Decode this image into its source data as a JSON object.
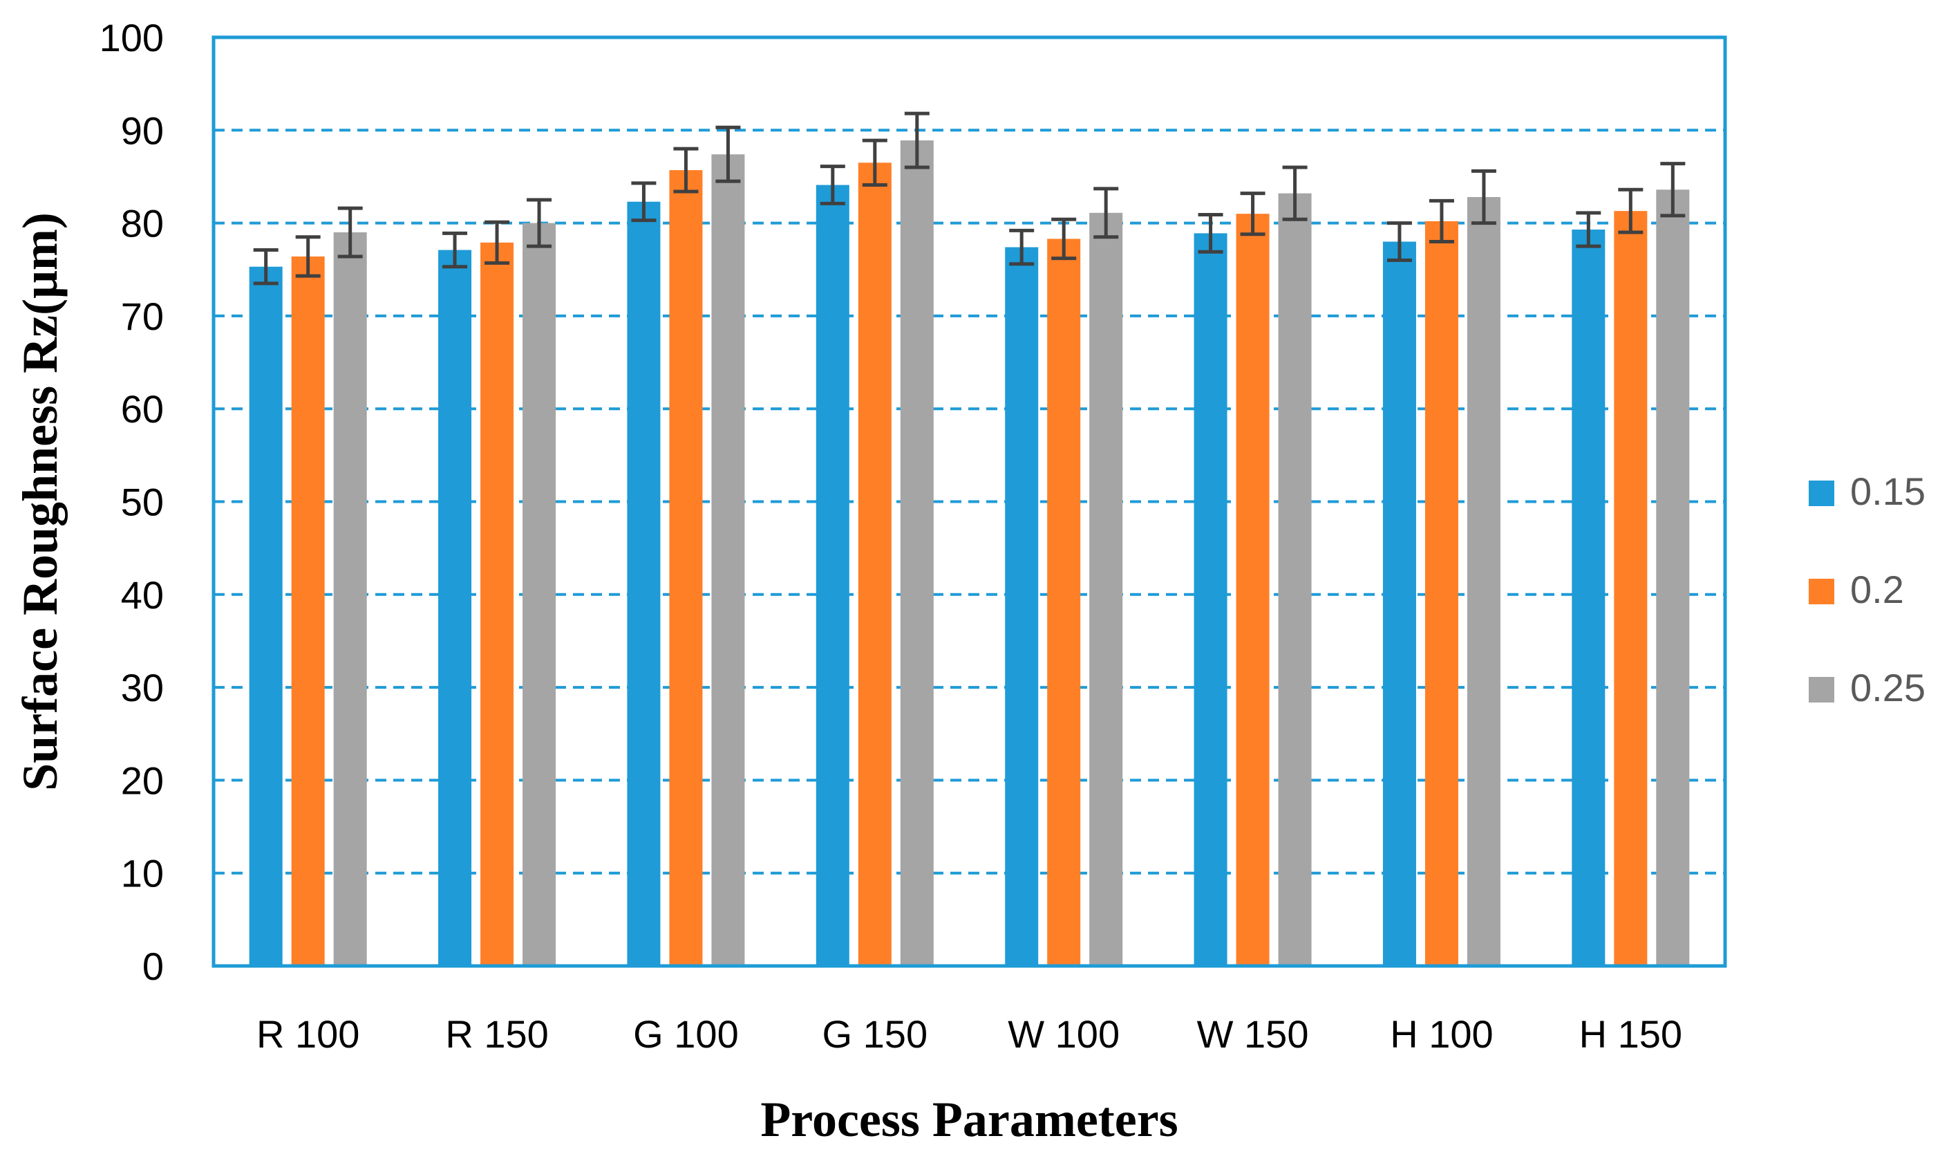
{
  "chart_data": {
    "type": "bar",
    "title": "",
    "xlabel": "Process Parameters",
    "ylabel": "Surface Roughness Rz(μm)",
    "ylim": [
      0,
      100
    ],
    "yticks": [
      "0",
      "10",
      "20",
      "30",
      "40",
      "50",
      "60",
      "70",
      "80",
      "90",
      "100"
    ],
    "grid": "horizontal dashed",
    "legend_position": "right",
    "categories": [
      "R 100",
      "R 150",
      "G 100",
      "G 150",
      "W 100",
      "W 150",
      "H 100",
      "H 150"
    ],
    "series": [
      {
        "name": "0.15",
        "color": "#1F9BD7",
        "values": [
          75.3,
          77.1,
          82.3,
          84.1,
          77.4,
          78.9,
          78.0,
          79.3
        ],
        "errors": [
          1.8,
          1.8,
          2.0,
          2.0,
          1.8,
          2.0,
          2.0,
          1.8
        ]
      },
      {
        "name": "0.2",
        "color": "#FF7F27",
        "values": [
          76.4,
          77.9,
          85.7,
          86.5,
          78.3,
          81.0,
          80.2,
          81.3
        ],
        "errors": [
          2.1,
          2.2,
          2.3,
          2.4,
          2.1,
          2.2,
          2.2,
          2.3
        ]
      },
      {
        "name": "0.25",
        "color": "#A5A5A5",
        "values": [
          79.0,
          80.0,
          87.4,
          88.9,
          81.1,
          83.2,
          82.8,
          83.6
        ],
        "errors": [
          2.6,
          2.5,
          2.9,
          2.9,
          2.6,
          2.8,
          2.8,
          2.8
        ]
      }
    ]
  },
  "colors": {
    "axis": "#1F9BD7",
    "grid": "#1F9BD7",
    "error_bar": "#404040"
  }
}
